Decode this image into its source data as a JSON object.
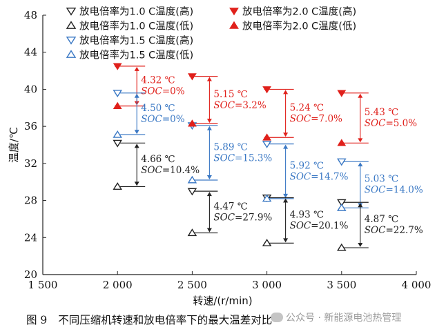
{
  "caption": {
    "figure": "图 9",
    "text": "不同压缩机转速和放电倍率下的最大温差对比"
  },
  "watermark": {
    "text": "公众号 · 新能源电池热管理",
    "icon": "wechat-icon"
  },
  "colors": {
    "black": "#222222",
    "blue": "#3a78c4",
    "red": "#e0201b"
  },
  "chart_data": {
    "type": "scatter",
    "xlabel": "转速/(r/min)",
    "ylabel": "温度/℃",
    "xlim": [
      1500,
      4000
    ],
    "ylim": [
      20,
      48
    ],
    "xticks": [
      1500,
      2000,
      2500,
      3000,
      3500,
      4000
    ],
    "xtick_labels": [
      "1 500",
      "2 000",
      "2 500",
      "3 000",
      "3 500",
      "4 000"
    ],
    "yticks": [
      20,
      24,
      28,
      32,
      36,
      40,
      44,
      48
    ],
    "legend_position": "top",
    "grid": false,
    "series": [
      {
        "name": "放电倍率为1.0 C温度(高)",
        "marker": "triangle-down-open",
        "color": "#222222",
        "x": [
          2000,
          2500,
          3000,
          3500
        ],
        "y": [
          34.2,
          29.0,
          28.3,
          27.8
        ]
      },
      {
        "name": "放电倍率为1.0 C温度(低)",
        "marker": "triangle-up-open",
        "color": "#222222",
        "x": [
          2000,
          2500,
          3000,
          3500
        ],
        "y": [
          29.5,
          24.5,
          23.4,
          22.9
        ]
      },
      {
        "name": "放电倍率为1.5 C温度(高)",
        "marker": "triangle-down-open",
        "color": "#3a78c4",
        "x": [
          2000,
          2500,
          3000,
          3500
        ],
        "y": [
          39.6,
          36.1,
          34.1,
          32.2
        ]
      },
      {
        "name": "放电倍率为1.5 C温度(低)",
        "marker": "triangle-up-open",
        "color": "#3a78c4",
        "x": [
          2000,
          2500,
          3000,
          3500
        ],
        "y": [
          35.1,
          30.2,
          28.2,
          27.2
        ]
      },
      {
        "name": "放电倍率为2.0 C温度(高)",
        "marker": "triangle-down-filled",
        "color": "#e0201b",
        "x": [
          2000,
          2500,
          3000,
          3500
        ],
        "y": [
          42.5,
          41.4,
          40.0,
          39.6
        ]
      },
      {
        "name": "放电倍率为2.0 C温度(低)",
        "marker": "triangle-up-filled",
        "color": "#e0201b",
        "x": [
          2000,
          2500,
          3000,
          3500
        ],
        "y": [
          38.2,
          36.3,
          34.8,
          34.2
        ]
      }
    ],
    "annotations": [
      {
        "color": "#e0201b",
        "x": 2000,
        "high": 42.5,
        "low": 38.2,
        "delta": "4.32 ℃",
        "soc": "SOC=0%"
      },
      {
        "color": "#3a78c4",
        "x": 2000,
        "high": 39.6,
        "low": 35.1,
        "delta": "4.50 ℃",
        "soc": "SOC=0%"
      },
      {
        "color": "#222222",
        "x": 2000,
        "high": 34.2,
        "low": 29.5,
        "delta": "4.66 ℃",
        "soc": "SOC=10.4%"
      },
      {
        "color": "#e0201b",
        "x": 2500,
        "high": 41.4,
        "low": 36.3,
        "delta": "5.15 ℃",
        "soc": "SOC=3.2%"
      },
      {
        "color": "#3a78c4",
        "x": 2500,
        "high": 36.1,
        "low": 30.2,
        "delta": "5.89 ℃",
        "soc": "SOC=15.3%"
      },
      {
        "color": "#222222",
        "x": 2500,
        "high": 29.0,
        "low": 24.5,
        "delta": "4.47 ℃",
        "soc": "SOC=27.9%"
      },
      {
        "color": "#e0201b",
        "x": 3000,
        "high": 40.0,
        "low": 34.8,
        "delta": "5.24 ℃",
        "soc": "SOC=7.0%"
      },
      {
        "color": "#3a78c4",
        "x": 3000,
        "high": 34.1,
        "low": 28.2,
        "delta": "5.92 ℃",
        "soc": "SOC=14.7%"
      },
      {
        "color": "#222222",
        "x": 3000,
        "high": 28.3,
        "low": 23.4,
        "delta": "4.93 ℃",
        "soc": "SOC=20.1%"
      },
      {
        "color": "#e0201b",
        "x": 3500,
        "high": 39.6,
        "low": 34.2,
        "delta": "5.43 ℃",
        "soc": "SOC=5.0%"
      },
      {
        "color": "#3a78c4",
        "x": 3500,
        "high": 32.2,
        "low": 27.2,
        "delta": "5.03 ℃",
        "soc": "SOC=14.0%"
      },
      {
        "color": "#222222",
        "x": 3500,
        "high": 27.8,
        "low": 22.9,
        "delta": "4.87 ℃",
        "soc": "SOC=22.7%"
      }
    ]
  }
}
